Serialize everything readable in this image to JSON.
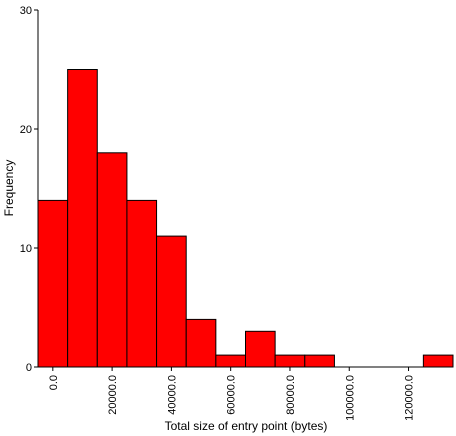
{
  "chart_data": {
    "type": "bar",
    "subtype": "histogram",
    "xlabel": "Total size of entry point (bytes)",
    "ylabel": "Frequency",
    "bin_width": 10000,
    "x_range": [
      -5000,
      135000
    ],
    "ylim": [
      0,
      30
    ],
    "y_ticks": [
      0,
      10,
      20,
      30
    ],
    "x_ticks": [
      0,
      20000,
      40000,
      60000,
      80000,
      100000,
      120000
    ],
    "x_tick_labels": [
      "0.0",
      "20000.0",
      "40000.0",
      "60000.0",
      "80000.0",
      "100000.0",
      "120000.0"
    ],
    "bins": [
      {
        "center": 0,
        "count": 14
      },
      {
        "center": 10000,
        "count": 25
      },
      {
        "center": 20000,
        "count": 18
      },
      {
        "center": 30000,
        "count": 14
      },
      {
        "center": 40000,
        "count": 11
      },
      {
        "center": 50000,
        "count": 4
      },
      {
        "center": 60000,
        "count": 1
      },
      {
        "center": 70000,
        "count": 3
      },
      {
        "center": 80000,
        "count": 1
      },
      {
        "center": 90000,
        "count": 1
      },
      {
        "center": 100000,
        "count": 0
      },
      {
        "center": 110000,
        "count": 0
      },
      {
        "center": 120000,
        "count": 0
      },
      {
        "center": 130000,
        "count": 1
      }
    ],
    "bar_color": "#ff0000",
    "bar_stroke": "#000000",
    "grid": false,
    "legend": "none"
  }
}
